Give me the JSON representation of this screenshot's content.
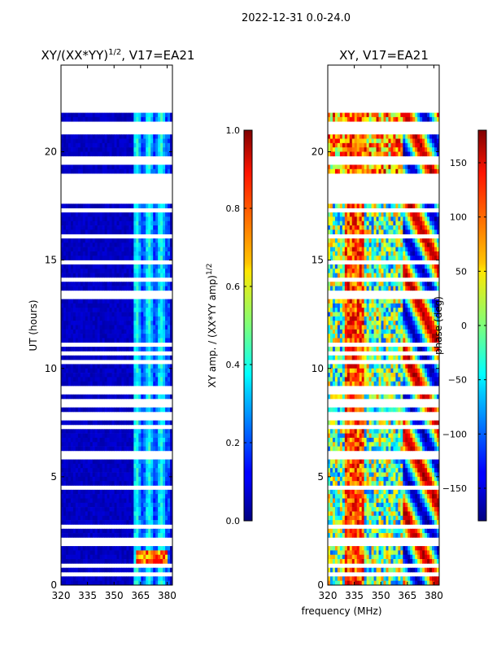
{
  "header": {
    "date_range": "2022-12-31 0.0-24.0"
  },
  "chart_data": [
    {
      "type": "heatmap",
      "title_base": "XY/(XX*YY)",
      "title_exp": "1/2",
      "title_suffix": ", V17=EA21",
      "xlabel": "",
      "ylabel": "UT (hours)",
      "xlim": [
        320,
        383
      ],
      "ylim": [
        0,
        24
      ],
      "xticks": [
        "320",
        "335",
        "350",
        "365",
        "380"
      ],
      "yticks": [
        "0",
        "5",
        "10",
        "15",
        "20"
      ],
      "data_extent_hours": [
        0,
        22
      ],
      "colorbar": {
        "label_base": "XY amp. / (XX*YY amp)",
        "label_exp": "1/2",
        "range": [
          0.0,
          1.0
        ],
        "ticks": [
          "0.0",
          "0.2",
          "0.4",
          "0.6",
          "0.8",
          "1.0"
        ]
      }
    },
    {
      "type": "heatmap",
      "title": "XY, V17=EA21",
      "xlabel": "frequency (MHz)",
      "ylabel": "",
      "xlim": [
        320,
        383
      ],
      "ylim": [
        0,
        24
      ],
      "xticks": [
        "320",
        "335",
        "350",
        "365",
        "380"
      ],
      "yticks": [
        "0",
        "5",
        "10",
        "15",
        "20"
      ],
      "data_extent_hours": [
        0,
        22
      ],
      "colorbar": {
        "label": "phase (deg)",
        "range": [
          -180,
          180
        ],
        "ticks": [
          "−150",
          "−100",
          "−50",
          "0",
          "50",
          "100",
          "150"
        ]
      }
    }
  ]
}
